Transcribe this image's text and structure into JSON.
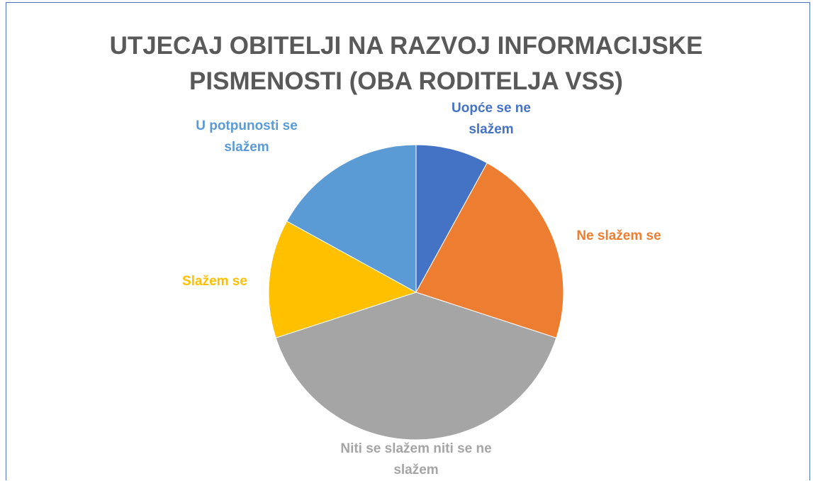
{
  "chart_data": {
    "type": "pie",
    "title": [
      "UTJECAJ OBITELJI NA RAZVOJ INFORMACIJSKE",
      "PISMENOSTI (OBA RODITELJA VSS)"
    ],
    "categories": [
      "Uopće se ne slažem",
      "Ne slažem se",
      "Niti se slažem niti se ne slažem",
      "Slažem se",
      "U potpunosti se slažem"
    ],
    "values": [
      8,
      22,
      40,
      13,
      17
    ],
    "colors": [
      "#4472c4",
      "#ed7d31",
      "#a5a5a5",
      "#ffc000",
      "#5b9bd5"
    ]
  }
}
